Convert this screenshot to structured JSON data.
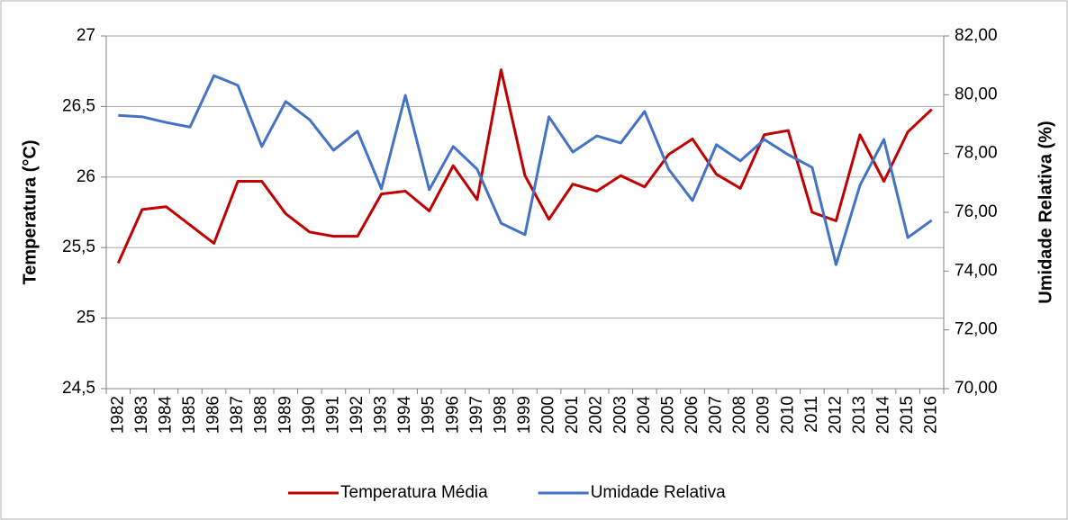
{
  "chart_data": {
    "type": "line",
    "ylabel": "Temperatura (°C)",
    "y2label": "Umidade Relativa (%)",
    "categories": [
      "1982",
      "1983",
      "1984",
      "1985",
      "1986",
      "1987",
      "1988",
      "1989",
      "1990",
      "1991",
      "1992",
      "1993",
      "1994",
      "1995",
      "1996",
      "1997",
      "1998",
      "1999",
      "2000",
      "2001",
      "2002",
      "2003",
      "2004",
      "2005",
      "2006",
      "2007",
      "2008",
      "2009",
      "2010",
      "2011",
      "2012",
      "2013",
      "2014",
      "2015",
      "2016"
    ],
    "series": [
      {
        "name": "Temperatura Média",
        "color": "#c00000",
        "values": [
          25.39,
          25.77,
          25.79,
          25.66,
          25.53,
          25.97,
          25.97,
          25.74,
          25.61,
          25.58,
          25.58,
          25.88,
          25.9,
          25.76,
          26.08,
          25.84,
          26.76,
          26.01,
          25.7,
          25.95,
          25.9,
          26.01,
          25.93,
          26.16,
          26.27,
          26.02,
          25.92,
          26.3,
          26.33,
          25.75,
          25.69,
          26.3,
          25.97,
          26.32,
          26.48
        ]
      },
      {
        "name": "Umidade Relativa",
        "color": "#4472c4",
        "axis": "y2",
        "values": [
          79.3,
          79.25,
          79.06,
          78.9,
          80.65,
          80.32,
          78.24,
          79.77,
          79.15,
          78.11,
          78.76,
          76.8,
          79.98,
          76.77,
          78.24,
          77.47,
          75.63,
          75.24,
          79.25,
          78.05,
          78.6,
          78.36,
          79.43,
          77.47,
          76.4,
          78.3,
          77.75,
          78.48,
          77.96,
          77.53,
          74.22,
          76.92,
          78.48,
          75.14,
          75.73
        ]
      }
    ],
    "ylim": [
      24.5,
      27
    ],
    "yticks": [
      {
        "value": 24.5,
        "label": "24,5"
      },
      25,
      {
        "value": 25.5,
        "label": "25,5"
      },
      26,
      {
        "value": 26.5,
        "label": "26,5"
      },
      27
    ],
    "y2lim": [
      70,
      82
    ],
    "y2ticks": [
      {
        "value": 70,
        "label": "70,00"
      },
      {
        "value": 72,
        "label": "72,00"
      },
      {
        "value": 74,
        "label": "74,00"
      },
      {
        "value": 76,
        "label": "76,00"
      },
      {
        "value": 78,
        "label": "78,00"
      },
      {
        "value": 80,
        "label": "80,00"
      },
      {
        "value": 82,
        "label": "82,00"
      }
    ],
    "grid": true,
    "legend": "bottom"
  }
}
